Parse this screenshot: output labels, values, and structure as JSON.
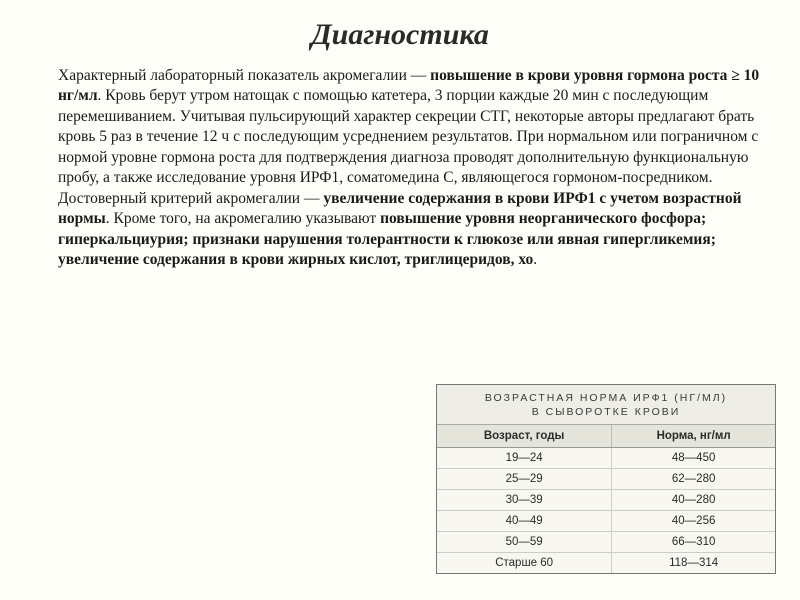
{
  "title": "Диагностика",
  "paragraph": {
    "parts": [
      {
        "t": "plain",
        "v": "Характерный лабораторный показатель акромегалии — "
      },
      {
        "t": "bold",
        "v": "повышение в крови уровня гормона роста ≥ 10 нг/мл"
      },
      {
        "t": "plain",
        "v": ". Кровь берут утром натощак с помощью катетера, 3 порции каждые 20 мин с последующим перемешиванием. Учитывая пульсирующий характер секреции СТГ, некоторые авторы предлагают брать кровь 5 раз в течение 12 ч с последующим усреднением результатов. При нормальном или пограничном с нормой уровне гормона роста для подтверждения диагноза проводят дополнительную функциональную пробу, а также исследование уровня ИРФ1, соматомедина С, являющегося гормоном-посредником. Достоверный критерий акромегалии — "
      },
      {
        "t": "bold",
        "v": "увеличение содержания в крови ИРФ1 с учетом возрастной нормы"
      },
      {
        "t": "plain",
        "v": ". Кроме того, на акромегалию указывают "
      },
      {
        "t": "bold",
        "v": "повышение уровня неорганического фосфора; гиперкальциурия; признаки нарушения толерантности к глюкозе или явная гипергликемия; увеличение содержания в крови жирных кислот, триглицеридов, хо"
      },
      {
        "t": "plain",
        "v": "."
      }
    ]
  },
  "table": {
    "title_line1": "ВОЗРАСТНАЯ НОРМА ИРФ1 (НГ/МЛ)",
    "title_line2": "В СЫВОРОТКЕ КРОВИ",
    "columns": [
      "Возраст, годы",
      "Норма, нг/мл"
    ],
    "rows": [
      [
        "19—24",
        "48—450"
      ],
      [
        "25—29",
        "62—280"
      ],
      [
        "30—39",
        "40—280"
      ],
      [
        "40—49",
        "40—256"
      ],
      [
        "50—59",
        "66—310"
      ],
      [
        "Старше 60",
        "118—314"
      ]
    ],
    "colors": {
      "header_bg": "#e6e5db",
      "row_bg": "#f8f7f0",
      "border": "#999"
    }
  },
  "page_bg": "#fefef8"
}
